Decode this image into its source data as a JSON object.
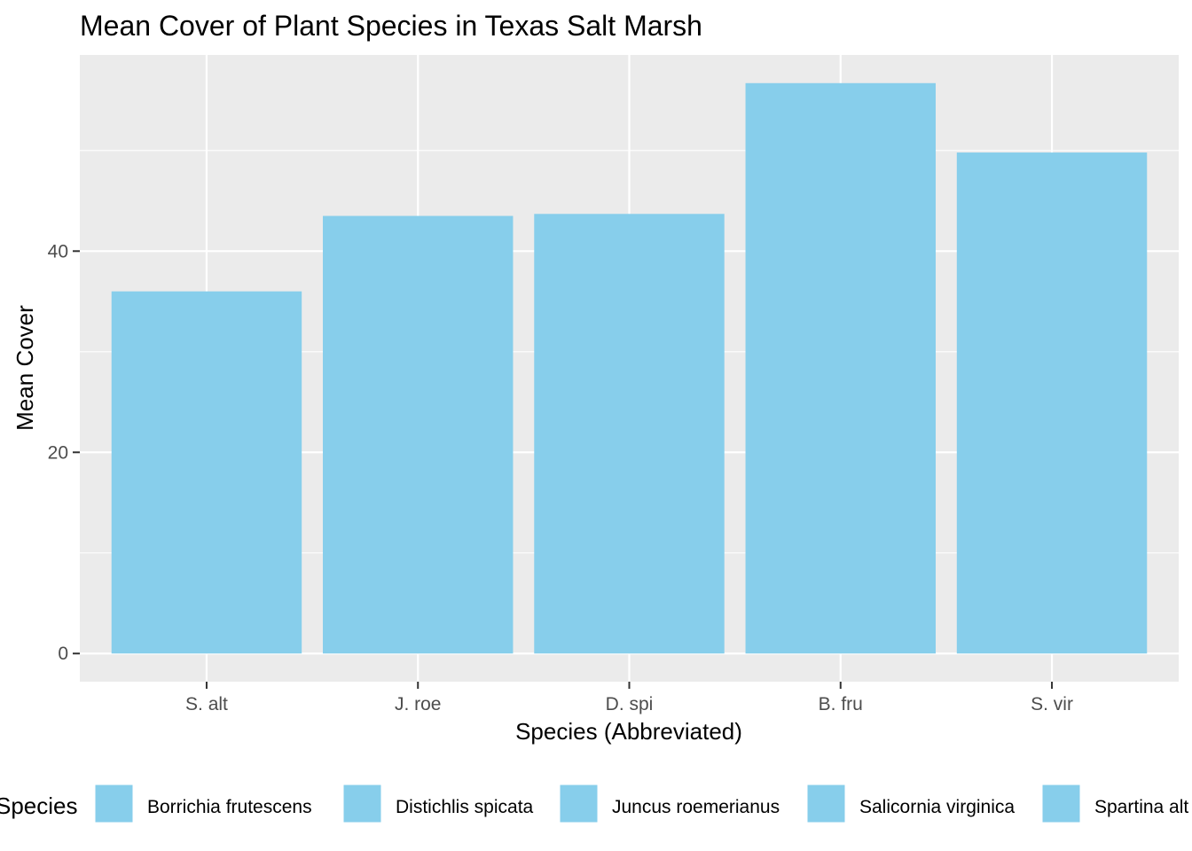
{
  "chart_data": {
    "type": "bar",
    "title": "Mean Cover of Plant Species in Texas Salt Marsh",
    "xlabel": "Species (Abbreviated)",
    "ylabel": "Mean Cover",
    "categories": [
      "S. alt",
      "J. roe",
      "D. spi",
      "B. fru",
      "S. vir"
    ],
    "values": [
      36.0,
      43.5,
      43.7,
      56.7,
      49.8
    ],
    "ylim": [
      -2.8,
      59.5
    ],
    "yticks": [
      0,
      20,
      40
    ],
    "yticks_labels": [
      "0",
      "20",
      "40"
    ],
    "grid": true,
    "bar_color": "#87CEEB",
    "panel_color": "#EBEBEB",
    "legend": {
      "placement": "bottom",
      "title": "Species",
      "entries": [
        "Borrichia frutescens",
        "Distichlis spicata",
        "Juncus roemerianus",
        "Salicornia virginica",
        "Spartina alt"
      ]
    }
  }
}
